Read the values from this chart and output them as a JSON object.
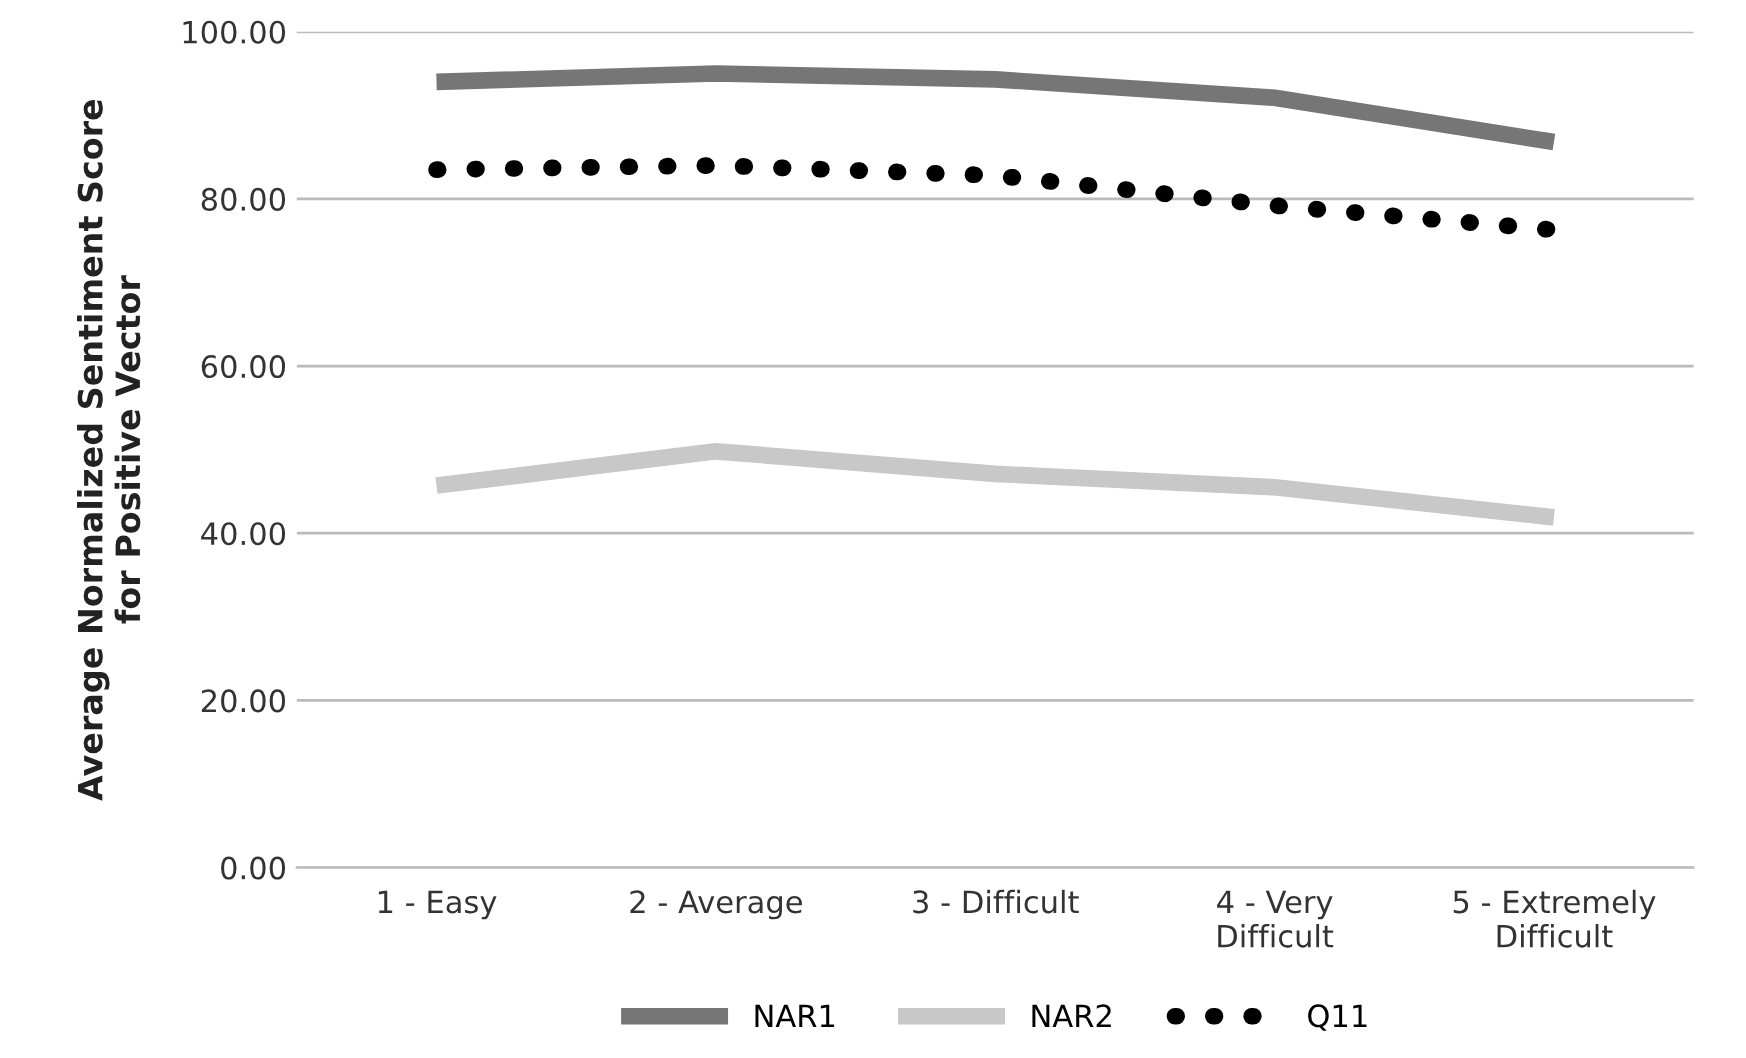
{
  "chart_data": {
    "type": "line",
    "ylabel": "Average Normalized Sentiment Score\nfor Positive Vector",
    "categories": [
      "1 - Easy",
      "2 - Average",
      "3 - Difficult",
      "4 - Very\nDifficult",
      "5 - Extremely\nDifficult"
    ],
    "series": [
      {
        "name": "NAR1",
        "color": "#767676",
        "values": [
          94.0,
          95.0,
          94.3,
          92.1,
          86.8
        ],
        "line_style": "solid"
      },
      {
        "name": "NAR2",
        "color": "#c8c8c8",
        "values": [
          45.7,
          49.8,
          47.1,
          45.5,
          41.9
        ],
        "line_style": "solid"
      },
      {
        "name": "Q11",
        "color": "#000000",
        "values": [
          83.5,
          84.0,
          82.8,
          79.2,
          76.3
        ],
        "line_style": "dotted"
      }
    ],
    "ylim": [
      0,
      100
    ],
    "yticks": [
      {
        "value": 0,
        "label": "0.00"
      },
      {
        "value": 20,
        "label": "20.00"
      },
      {
        "value": 40,
        "label": "40.00"
      },
      {
        "value": 60,
        "label": "60.00"
      },
      {
        "value": 80,
        "label": "80.00"
      },
      {
        "value": 100,
        "label": "100.00"
      }
    ],
    "grid": "y",
    "legend": "bottom",
    "marker": "none"
  }
}
